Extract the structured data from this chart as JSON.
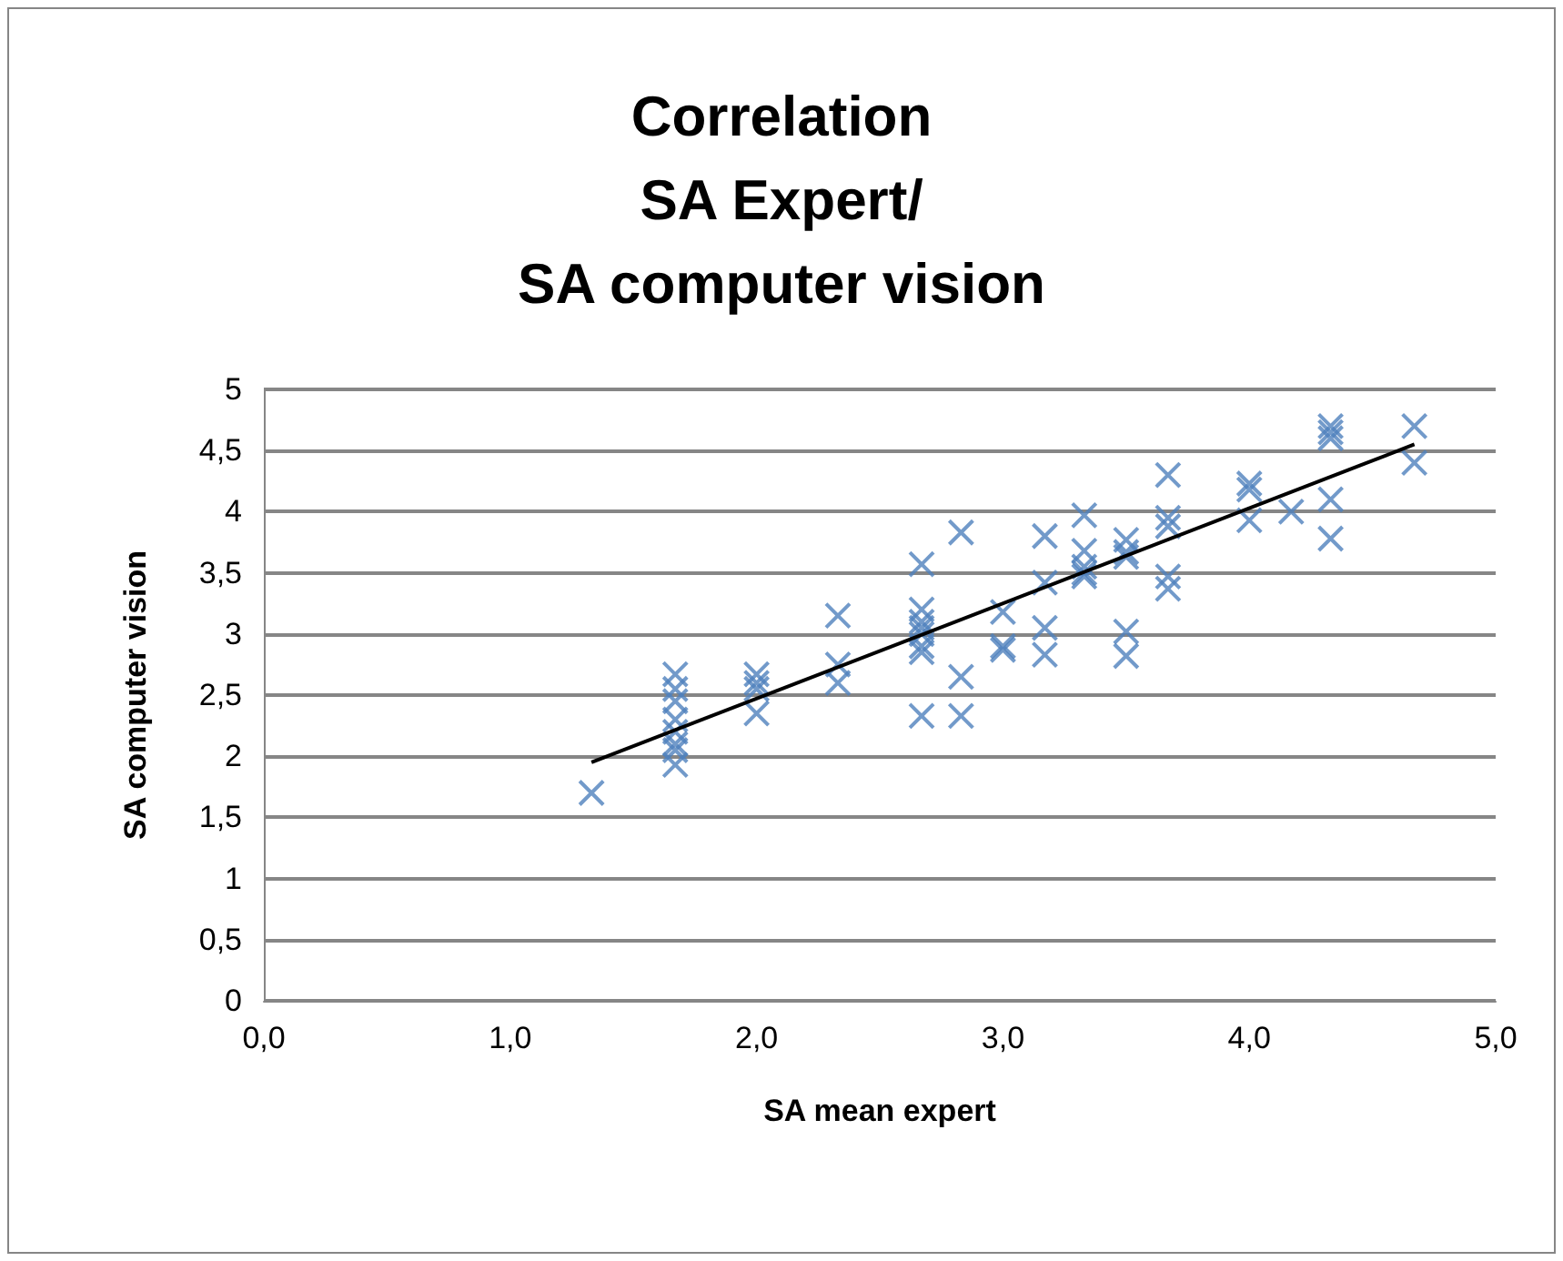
{
  "chart_data": {
    "type": "scatter",
    "title": "Correlation\nSA Expert/\nSA computer vision",
    "xlabel": "SA mean expert",
    "ylabel": "SA computer vision",
    "series": [
      {
        "color": "#4f81bd",
        "marker": "cross",
        "x": [
          1.33,
          1.67,
          1.67,
          1.67,
          1.67,
          1.67,
          1.67,
          1.67,
          1.67,
          2.0,
          2.0,
          2.0,
          2.0,
          2.33,
          2.33,
          2.33,
          2.67,
          2.67,
          2.67,
          2.67,
          2.67,
          2.67,
          2.67,
          2.67,
          2.83,
          2.83,
          2.83,
          3.0,
          3.0,
          3.0,
          3.17,
          3.17,
          3.17,
          3.17,
          3.33,
          3.33,
          3.33,
          3.33,
          3.33,
          3.5,
          3.5,
          3.5,
          3.5,
          3.5,
          3.67,
          3.67,
          3.67,
          3.67,
          3.67,
          4.0,
          4.0,
          4.0,
          4.17,
          4.33,
          4.33,
          4.33,
          4.33,
          4.33,
          4.67,
          4.67
        ],
        "values": [
          1.7,
          2.67,
          2.55,
          2.45,
          2.3,
          2.2,
          2.1,
          2.05,
          1.93,
          2.67,
          2.6,
          2.55,
          2.35,
          3.15,
          2.75,
          2.6,
          3.57,
          3.2,
          3.1,
          3.05,
          3.0,
          2.9,
          2.85,
          2.33,
          3.83,
          2.65,
          2.33,
          3.18,
          2.9,
          2.87,
          3.8,
          3.42,
          3.05,
          2.83,
          3.97,
          3.68,
          3.55,
          3.5,
          3.47,
          3.77,
          3.67,
          3.63,
          3.02,
          2.82,
          4.3,
          3.95,
          3.88,
          3.47,
          3.37,
          4.23,
          4.18,
          3.93,
          4.0,
          4.7,
          4.65,
          4.6,
          4.1,
          3.78,
          4.7,
          4.4
        ]
      },
      {
        "type": "line",
        "color": "#000000",
        "marker": "none",
        "x": [
          1.33,
          4.67
        ],
        "values": [
          1.95,
          4.55
        ]
      }
    ],
    "xlim": [
      0,
      5
    ],
    "xticks": [
      {
        "value": 0,
        "label": "0,0"
      },
      {
        "value": 1,
        "label": "1,0"
      },
      {
        "value": 2,
        "label": "2,0"
      },
      {
        "value": 3,
        "label": "3,0"
      },
      {
        "value": 4,
        "label": "4,0"
      },
      {
        "value": 5,
        "label": "5,0"
      }
    ],
    "ylim": [
      0,
      5
    ],
    "yticks": [
      0,
      {
        "value": 0.5,
        "label": "0,5"
      },
      1,
      {
        "value": 1.5,
        "label": "1,5"
      },
      2,
      {
        "value": 2.5,
        "label": "2,5"
      },
      3,
      {
        "value": 3.5,
        "label": "3,5"
      },
      4,
      {
        "value": 4.5,
        "label": "4,5"
      },
      5
    ],
    "grid": "y"
  }
}
